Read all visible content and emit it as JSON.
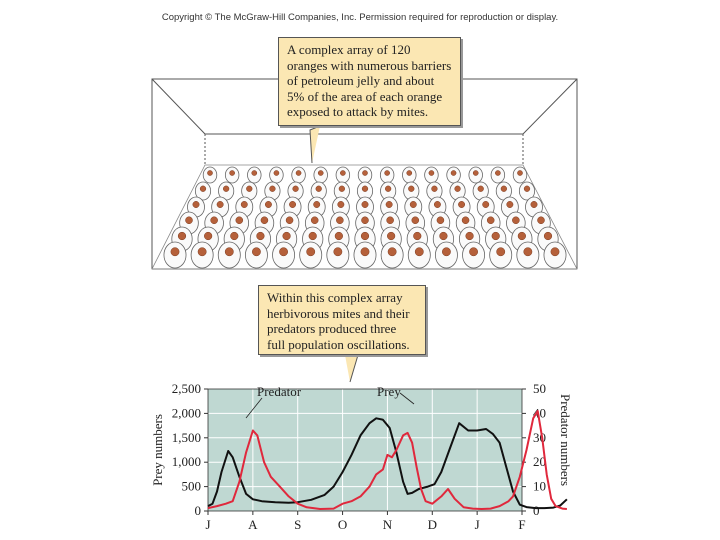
{
  "copyright": "Copyright © The McGraw-Hill Companies, Inc. Permission required for reproduction or display.",
  "callouts": {
    "top": "A complex array of 120 oranges with numerous barriers of petroleum jelly and about 5% of the area of each orange exposed to attack by mites.",
    "bottom": "Within this complex array herbivorous mites and their predators produced three full population oscillations."
  },
  "colors": {
    "plot_bg": "#bfd8d2",
    "predator": "#e0283c",
    "prey": "#111111",
    "callout_bg": "#fbe7b3",
    "orange_spot": "#b5603a"
  },
  "chart_data": {
    "type": "line",
    "x_categories": [
      "J",
      "A",
      "S",
      "O",
      "N",
      "D",
      "J",
      "F"
    ],
    "y_left_label": "Prey numbers",
    "y_left_ticks": [
      "0",
      "500",
      "1,000",
      "1,500",
      "2,000",
      "2,500"
    ],
    "y_left_lim": [
      0,
      2500
    ],
    "y_right_label": "Predator numbers",
    "y_right_ticks": [
      "0",
      "10",
      "20",
      "30",
      "40",
      "50"
    ],
    "y_right_lim": [
      0,
      50
    ],
    "grid": true,
    "series": [
      {
        "name": "Prey",
        "axis": "left",
        "points": [
          [
            0,
            100
          ],
          [
            0.1,
            150
          ],
          [
            0.2,
            400
          ],
          [
            0.3,
            800
          ],
          [
            0.45,
            1230
          ],
          [
            0.55,
            1100
          ],
          [
            0.7,
            700
          ],
          [
            0.85,
            350
          ],
          [
            1.0,
            240
          ],
          [
            1.2,
            200
          ],
          [
            1.5,
            180
          ],
          [
            1.8,
            170
          ],
          [
            2.0,
            180
          ],
          [
            2.3,
            230
          ],
          [
            2.6,
            330
          ],
          [
            2.8,
            500
          ],
          [
            3.0,
            800
          ],
          [
            3.2,
            1150
          ],
          [
            3.4,
            1550
          ],
          [
            3.6,
            1800
          ],
          [
            3.75,
            1900
          ],
          [
            3.9,
            1870
          ],
          [
            4.05,
            1700
          ],
          [
            4.2,
            1200
          ],
          [
            4.35,
            600
          ],
          [
            4.45,
            350
          ],
          [
            4.55,
            370
          ],
          [
            4.7,
            450
          ],
          [
            4.9,
            500
          ],
          [
            5.05,
            550
          ],
          [
            5.2,
            800
          ],
          [
            5.4,
            1300
          ],
          [
            5.6,
            1800
          ],
          [
            5.8,
            1650
          ],
          [
            6.0,
            1650
          ],
          [
            6.2,
            1680
          ],
          [
            6.35,
            1580
          ],
          [
            6.5,
            1400
          ],
          [
            6.65,
            900
          ],
          [
            6.8,
            400
          ],
          [
            6.95,
            130
          ],
          [
            7.1,
            80
          ],
          [
            7.3,
            60
          ],
          [
            7.5,
            60
          ],
          [
            7.7,
            70
          ],
          [
            7.85,
            110
          ],
          [
            8.0,
            240
          ]
        ]
      },
      {
        "name": "Predator",
        "axis": "right",
        "points": [
          [
            0,
            1.2
          ],
          [
            0.2,
            2
          ],
          [
            0.4,
            3
          ],
          [
            0.55,
            4
          ],
          [
            0.7,
            12
          ],
          [
            0.85,
            24
          ],
          [
            1.0,
            33
          ],
          [
            1.1,
            31
          ],
          [
            1.25,
            20
          ],
          [
            1.4,
            14
          ],
          [
            1.6,
            10
          ],
          [
            1.8,
            6
          ],
          [
            2.0,
            3
          ],
          [
            2.2,
            1.5
          ],
          [
            2.5,
            0.8
          ],
          [
            2.8,
            1
          ],
          [
            3.0,
            3
          ],
          [
            3.2,
            4
          ],
          [
            3.4,
            6
          ],
          [
            3.6,
            10
          ],
          [
            3.75,
            15
          ],
          [
            3.9,
            17
          ],
          [
            4.0,
            23
          ],
          [
            4.1,
            22
          ],
          [
            4.2,
            25
          ],
          [
            4.35,
            31
          ],
          [
            4.45,
            32
          ],
          [
            4.55,
            28
          ],
          [
            4.65,
            18
          ],
          [
            4.75,
            9
          ],
          [
            4.85,
            4
          ],
          [
            5.0,
            3
          ],
          [
            5.2,
            6
          ],
          [
            5.35,
            9
          ],
          [
            5.5,
            5
          ],
          [
            5.7,
            1.5
          ],
          [
            5.9,
            1
          ],
          [
            6.1,
            0.8
          ],
          [
            6.3,
            1
          ],
          [
            6.5,
            2
          ],
          [
            6.7,
            4
          ],
          [
            6.8,
            6
          ],
          [
            6.95,
            14
          ],
          [
            7.1,
            25
          ],
          [
            7.25,
            38
          ],
          [
            7.35,
            41
          ],
          [
            7.45,
            30
          ],
          [
            7.55,
            15
          ],
          [
            7.65,
            5
          ],
          [
            7.75,
            2
          ],
          [
            7.9,
            1
          ],
          [
            8.0,
            0.8
          ]
        ]
      }
    ]
  }
}
